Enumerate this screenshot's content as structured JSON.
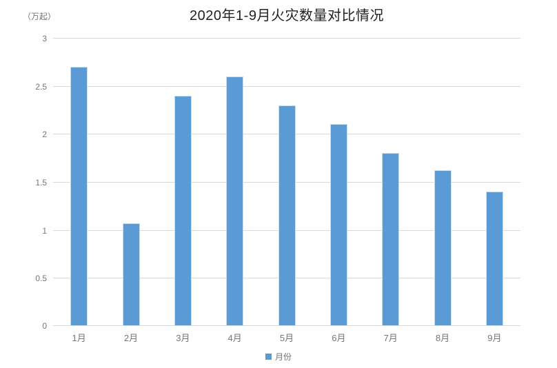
{
  "chart_data": {
    "type": "bar",
    "title": "2020年1-9月火灾数量对比情况",
    "ylabel": "（万起）",
    "categories": [
      "1月",
      "2月",
      "3月",
      "4月",
      "5月",
      "6月",
      "7月",
      "8月",
      "9月"
    ],
    "series": [
      {
        "name": "月份",
        "values": [
          2.7,
          1.07,
          2.4,
          2.6,
          2.3,
          2.1,
          1.8,
          1.62,
          1.4
        ]
      }
    ],
    "ylim": [
      0,
      3
    ],
    "yticks": [
      0,
      0.5,
      1,
      1.5,
      2,
      2.5,
      3
    ],
    "grid": true,
    "legend_position": "bottom",
    "colors": {
      "bar": "#5B9BD5",
      "bar_border": "#C9DEF1",
      "grid": "#D9D9D9",
      "axis_text": "#757575",
      "title_text": "#222222"
    }
  }
}
